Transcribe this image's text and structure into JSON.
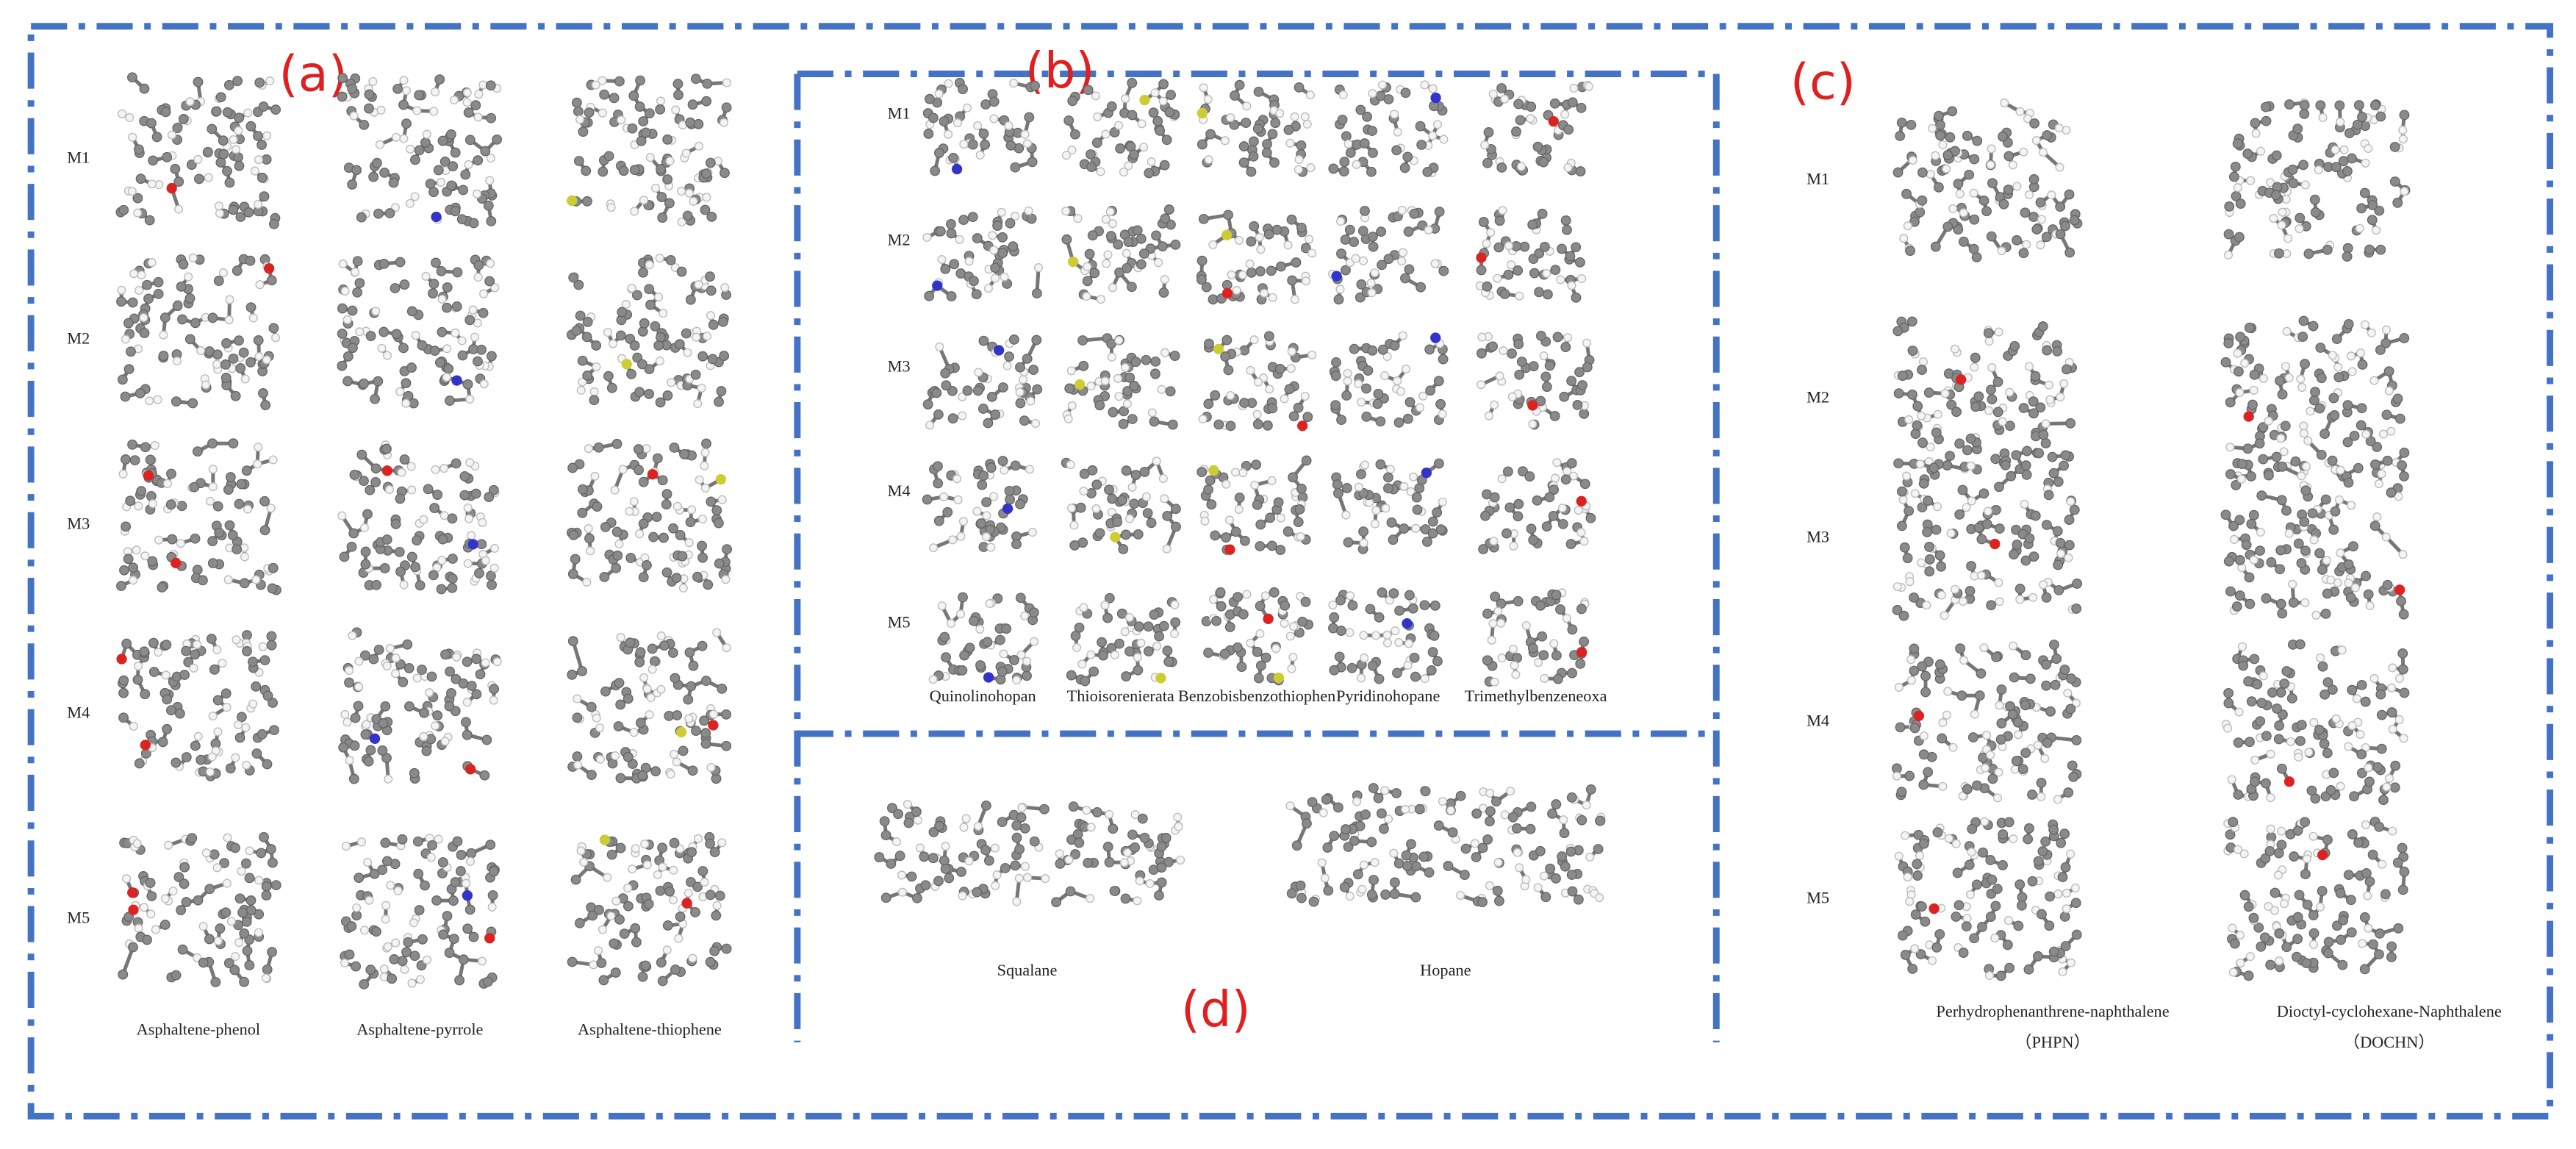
{
  "panels": {
    "a": {
      "label": "(a)",
      "rows": [
        "M1",
        "M2",
        "M3",
        "M4",
        "M5"
      ],
      "columns": [
        "Asphaltene-phenol",
        "Asphaltene-pyrrole",
        "Asphaltene-thiophene"
      ]
    },
    "b": {
      "label": "(b)",
      "rows": [
        "M1",
        "M2",
        "M3",
        "M4",
        "M5"
      ],
      "columns": [
        "Quinolinohopan",
        "Thioisorenierata",
        "Benzobisbenzothiophen",
        "Pyridinohopane",
        "Trimethylbenzeneoxa"
      ]
    },
    "c": {
      "label": "(c)",
      "rows": [
        "M1",
        "M2",
        "M3",
        "M4",
        "M5"
      ],
      "columns": [
        "Perhydrophenanthrene-naphthalene",
        "Dioctyl-cyclohexane-Naphthalene"
      ],
      "abbreviations": [
        "（PHPN）",
        "（DOCHN）"
      ]
    },
    "d": {
      "label": "(d)",
      "columns": [
        "Squalane",
        "Hopane"
      ]
    }
  }
}
